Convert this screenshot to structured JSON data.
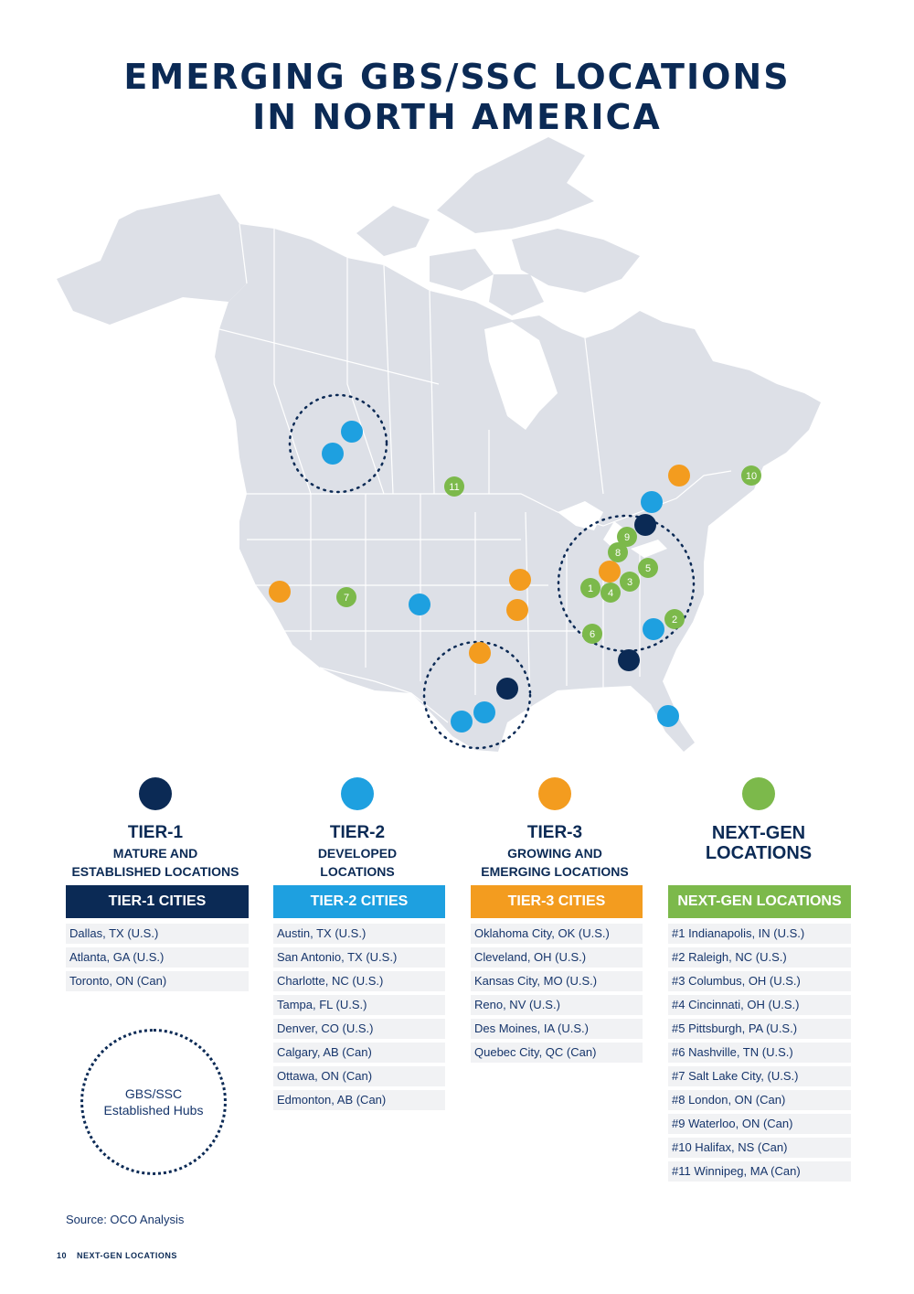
{
  "title": {
    "line1": "EMERGING GBS/SSC LOCATIONS",
    "line2": "IN NORTH AMERICA"
  },
  "colors": {
    "tier1": "#0b2a55",
    "tier2": "#1ea0e0",
    "tier3": "#f39c1f",
    "nextgen": "#7cb94b",
    "land": "#dde0e7",
    "borders": "#ffffff"
  },
  "map": {
    "markers": [
      {
        "type": "tier2",
        "label": ""
      },
      {
        "type": "tier2",
        "label": ""
      },
      {
        "type": "nextgen",
        "label": "11"
      },
      {
        "type": "tier3",
        "label": ""
      },
      {
        "type": "nextgen",
        "label": "10"
      },
      {
        "type": "tier2",
        "label": ""
      },
      {
        "type": "tier1",
        "label": ""
      },
      {
        "type": "nextgen",
        "label": "9"
      },
      {
        "type": "nextgen",
        "label": "8"
      },
      {
        "type": "tier3",
        "label": ""
      },
      {
        "type": "nextgen",
        "label": "5"
      },
      {
        "type": "nextgen",
        "label": "1"
      },
      {
        "type": "nextgen",
        "label": "4"
      },
      {
        "type": "nextgen",
        "label": "3"
      },
      {
        "type": "nextgen",
        "label": "2"
      },
      {
        "type": "tier2",
        "label": ""
      },
      {
        "type": "nextgen",
        "label": "6"
      },
      {
        "type": "tier1",
        "label": ""
      },
      {
        "type": "tier3",
        "label": ""
      },
      {
        "type": "nextgen",
        "label": "7"
      },
      {
        "type": "tier2",
        "label": ""
      },
      {
        "type": "tier3",
        "label": ""
      },
      {
        "type": "tier3",
        "label": ""
      },
      {
        "type": "tier3",
        "label": ""
      },
      {
        "type": "tier1",
        "label": ""
      },
      {
        "type": "tier2",
        "label": ""
      },
      {
        "type": "tier2",
        "label": ""
      },
      {
        "type": "tier2",
        "label": ""
      }
    ]
  },
  "tiers": {
    "tier1": {
      "name": "TIER-1",
      "desc1": "MATURE AND",
      "desc2": "ESTABLISHED LOCATIONS"
    },
    "tier2": {
      "name": "TIER-2",
      "desc1": "DEVELOPED",
      "desc2": "LOCATIONS"
    },
    "tier3": {
      "name": "TIER-3",
      "desc1": "GROWING AND",
      "desc2": "EMERGING LOCATIONS"
    },
    "nextgen": {
      "name1": "NEXT-GEN",
      "name2": "LOCATIONS"
    }
  },
  "lists": {
    "tier1": {
      "header": "TIER-1 CITIES",
      "items": [
        "Dallas, TX (U.S.)",
        "Atlanta, GA (U.S.)",
        "Toronto, ON (Can)"
      ]
    },
    "tier2": {
      "header": "TIER-2 CITIES",
      "items": [
        "Austin, TX (U.S.)",
        "San Antonio, TX (U.S.)",
        "Charlotte, NC (U.S.)",
        "Tampa, FL (U.S.)",
        "Denver, CO (U.S.)",
        "Calgary, AB (Can)",
        "Ottawa, ON (Can)",
        "Edmonton, AB (Can)"
      ]
    },
    "tier3": {
      "header": "TIER-3 CITIES",
      "items": [
        "Oklahoma City, OK (U.S.)",
        "Cleveland, OH (U.S.)",
        "Kansas City, MO (U.S.)",
        "Reno, NV (U.S.)",
        "Des Moines, IA (U.S.)",
        "Quebec City, QC (Can)"
      ]
    },
    "nextgen": {
      "header": "NEXT-GEN LOCATIONS",
      "items": [
        "#1 Indianapolis, IN (U.S.)",
        "#2 Raleigh, NC (U.S.)",
        "#3 Columbus, OH (U.S.)",
        "#4 Cincinnati, OH (U.S.)",
        "#5 Pittsburgh, PA (U.S.)",
        "#6 Nashville, TN (U.S.)",
        "#7 Salt Lake City, (U.S.)",
        "#8 London, ON (Can)",
        "#9 Waterloo, ON (Can)",
        "#10 Halifax, NS (Can)",
        "#11 Winnipeg, MA (Can)"
      ]
    }
  },
  "legend": {
    "line1": "GBS/SSC",
    "line2": "Established Hubs"
  },
  "source": "Source: OCO Analysis",
  "footer": {
    "page": "10",
    "section": "NEXT-GEN LOCATIONS"
  }
}
